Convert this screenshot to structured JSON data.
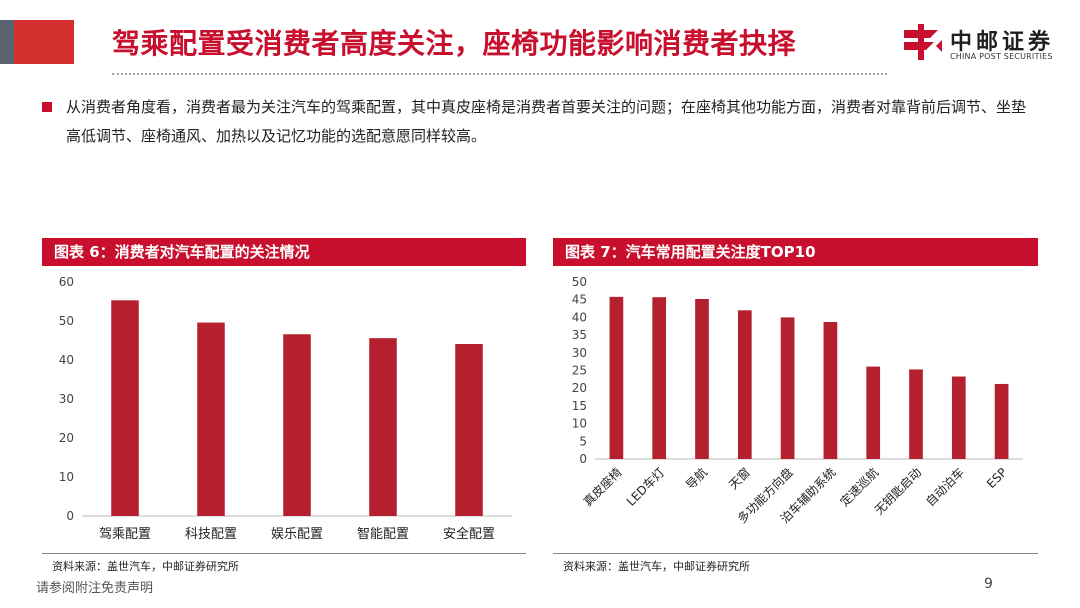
{
  "title": "驾乘配置受消费者高度关注，座椅功能影响消费者抉择",
  "logo": {
    "cn": "中邮证券",
    "en": "CHINA POST SECURITIES"
  },
  "bullet": "从消费者角度看，消费者最为关注汽车的驾乘配置，其中真皮座椅是消费者首要关注的问题；在座椅其他功能方面，消费者对靠背前后调节、坐垫高低调节、座椅通风、加热以及记忆功能的选配意愿同样较高。",
  "charts": {
    "left": {
      "heading": "图表 6：消费者对汽车配置的关注情况",
      "source": "资料来源：盖世汽车，中邮证券研究所"
    },
    "right": {
      "heading": "图表 7：汽车常用配置关注度TOP10",
      "source": "资料来源：盖世汽车，中邮证券研究所"
    }
  },
  "chart_data": [
    {
      "type": "bar",
      "categories": [
        "驾乘配置",
        "科技配置",
        "娱乐配置",
        "智能配置",
        "安全配置"
      ],
      "values": [
        55.3,
        49.6,
        46.6,
        45.6,
        44.1
      ],
      "ylim": [
        0,
        60
      ],
      "yticks": [
        0,
        10,
        20,
        30,
        40,
        50,
        60
      ],
      "color": "#b5202e"
    },
    {
      "type": "bar",
      "categories": [
        "真皮座椅",
        "LED车灯",
        "导航",
        "天窗",
        "多功能方向盘",
        "泊车辅助系统",
        "定速巡航",
        "无钥匙启动",
        "自动泊车",
        "ESP"
      ],
      "values": [
        45.8,
        45.7,
        45.2,
        42.0,
        40.0,
        38.7,
        26.1,
        25.3,
        23.3,
        21.2
      ],
      "ylim": [
        0,
        50
      ],
      "yticks": [
        0,
        5,
        10,
        15,
        20,
        25,
        30,
        35,
        40,
        45,
        50
      ],
      "color": "#b5202e"
    }
  ],
  "footer": {
    "disclaimer": "请参阅附注免责声明",
    "page": "9"
  }
}
